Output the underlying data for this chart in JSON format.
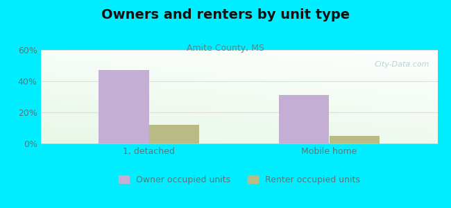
{
  "title": "Owners and renters by unit type",
  "subtitle": "Amite County, MS",
  "categories": [
    "1, detached",
    "Mobile home"
  ],
  "owner_values": [
    47,
    31
  ],
  "renter_values": [
    12,
    5
  ],
  "owner_color": "#c4aed4",
  "renter_color": "#b8bc84",
  "ylim": [
    0,
    60
  ],
  "yticks": [
    0,
    20,
    40,
    60
  ],
  "ytick_labels": [
    "0%",
    "20%",
    "40%",
    "60%"
  ],
  "title_fontsize": 14,
  "subtitle_fontsize": 9,
  "legend_fontsize": 9,
  "bar_width": 0.28,
  "background_color": "#00eeff",
  "plot_bg_topleft": "#e8f5e0",
  "plot_bg_topright": "#f8fcf8",
  "plot_bg_bottomleft": "#c8e8b0",
  "plot_bg_bottomright": "#eef8e8",
  "grid_color": "#dddddd",
  "watermark": "City-Data.com",
  "watermark_color": "#aacccc",
  "title_color": "#111111",
  "subtitle_color": "#558888",
  "tick_color": "#557777"
}
